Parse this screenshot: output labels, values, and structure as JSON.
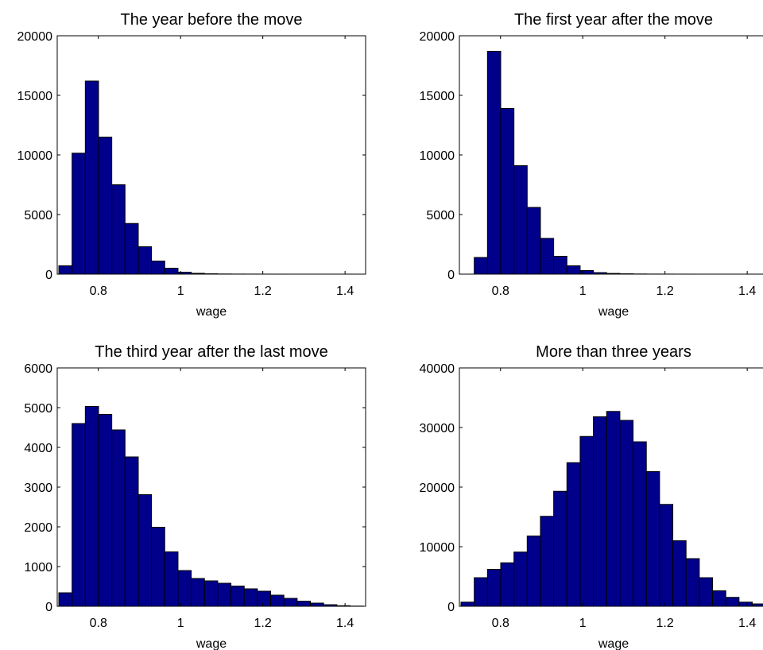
{
  "figure": {
    "bar_color": "#00008B",
    "edge_color": "#000000"
  },
  "chart_data": [
    {
      "type": "bar",
      "title": "The year before the move",
      "xlabel": "wage",
      "ylabel": "",
      "xlim": [
        0.7,
        1.45
      ],
      "ylim": [
        0,
        20000
      ],
      "xticks": [
        0.8,
        1,
        1.2,
        1.4
      ],
      "xtick_labels": [
        "0.8",
        "1",
        "1.2",
        "1.4"
      ],
      "yticks": [
        0,
        5000,
        10000,
        15000,
        20000
      ],
      "ytick_labels": [
        "0",
        "5000",
        "10000",
        "15000",
        "20000"
      ],
      "bin_width": 0.0322,
      "bin_centers": [
        0.72,
        0.7522,
        0.7844,
        0.8166,
        0.8488,
        0.881,
        0.9132,
        0.9454,
        0.9776,
        1.0098,
        1.042,
        1.0742,
        1.1064,
        1.1386,
        1.1708,
        1.203,
        1.2352,
        1.2674,
        1.2996,
        1.3318,
        1.364,
        1.3962
      ],
      "values": [
        700,
        10150,
        16200,
        11500,
        7500,
        4250,
        2300,
        1100,
        500,
        160,
        70,
        30,
        15,
        8,
        5,
        3,
        2,
        1,
        1,
        1,
        1,
        1
      ]
    },
    {
      "type": "bar",
      "title": "The first year after the move",
      "xlabel": "wage",
      "ylabel": "",
      "xlim": [
        0.7,
        1.45
      ],
      "ylim": [
        0,
        20000
      ],
      "xticks": [
        0.8,
        1,
        1.2,
        1.4
      ],
      "xtick_labels": [
        "0.8",
        "1",
        "1.2",
        "1.4"
      ],
      "yticks": [
        0,
        5000,
        10000,
        15000,
        20000
      ],
      "ytick_labels": [
        "0",
        "5000",
        "10000",
        "15000",
        "20000"
      ],
      "bin_width": 0.0322,
      "bin_centers": [
        0.7522,
        0.7844,
        0.8166,
        0.8488,
        0.881,
        0.9132,
        0.9454,
        0.9776,
        1.0098,
        1.042,
        1.0742,
        1.1064,
        1.1386,
        1.1708,
        1.203,
        1.2352,
        1.2674,
        1.2996,
        1.3318,
        1.364,
        1.3962,
        1.4284
      ],
      "values": [
        1400,
        18700,
        13900,
        9100,
        5600,
        3000,
        1500,
        700,
        300,
        130,
        60,
        30,
        15,
        8,
        5,
        3,
        2,
        1,
        1,
        1,
        1,
        1
      ]
    },
    {
      "type": "bar",
      "title": "The third year after the last move",
      "xlabel": "wage",
      "ylabel": "",
      "xlim": [
        0.7,
        1.45
      ],
      "ylim": [
        0,
        6000
      ],
      "xticks": [
        0.8,
        1,
        1.2,
        1.4
      ],
      "xtick_labels": [
        "0.8",
        "1",
        "1.2",
        "1.4"
      ],
      "yticks": [
        0,
        1000,
        2000,
        3000,
        4000,
        5000,
        6000
      ],
      "ytick_labels": [
        "0",
        "1000",
        "2000",
        "3000",
        "4000",
        "5000",
        "6000"
      ],
      "bin_width": 0.0322,
      "bin_centers": [
        0.72,
        0.7522,
        0.7844,
        0.8166,
        0.8488,
        0.881,
        0.9132,
        0.9454,
        0.9776,
        1.0098,
        1.042,
        1.0742,
        1.1064,
        1.1386,
        1.1708,
        1.203,
        1.2352,
        1.2674,
        1.2996,
        1.3318,
        1.364,
        1.3962,
        1.4284
      ],
      "values": [
        340,
        4600,
        5030,
        4830,
        4440,
        3760,
        2810,
        1990,
        1370,
        900,
        700,
        640,
        580,
        510,
        440,
        380,
        280,
        200,
        130,
        80,
        40,
        15,
        5
      ]
    },
    {
      "type": "bar",
      "title": "More than three years",
      "xlabel": "wage",
      "ylabel": "",
      "xlim": [
        0.7,
        1.45
      ],
      "ylim": [
        0,
        40000
      ],
      "xticks": [
        0.8,
        1,
        1.2,
        1.4
      ],
      "xtick_labels": [
        "0.8",
        "1",
        "1.2",
        "1.4"
      ],
      "yticks": [
        0,
        10000,
        20000,
        30000,
        40000
      ],
      "ytick_labels": [
        "0",
        "10000",
        "20000",
        "30000",
        "40000"
      ],
      "bin_width": 0.0322,
      "bin_centers": [
        0.72,
        0.7522,
        0.7844,
        0.8166,
        0.8488,
        0.881,
        0.9132,
        0.9454,
        0.9776,
        1.0098,
        1.042,
        1.0742,
        1.1064,
        1.1386,
        1.1708,
        1.203,
        1.2352,
        1.2674,
        1.2996,
        1.3318,
        1.364,
        1.3962,
        1.4284
      ],
      "values": [
        700,
        4800,
        6200,
        7300,
        9100,
        11800,
        15100,
        19300,
        24100,
        28500,
        31800,
        32700,
        31200,
        27600,
        22600,
        17100,
        11000,
        8000,
        4800,
        2600,
        1500,
        700,
        400
      ]
    }
  ]
}
